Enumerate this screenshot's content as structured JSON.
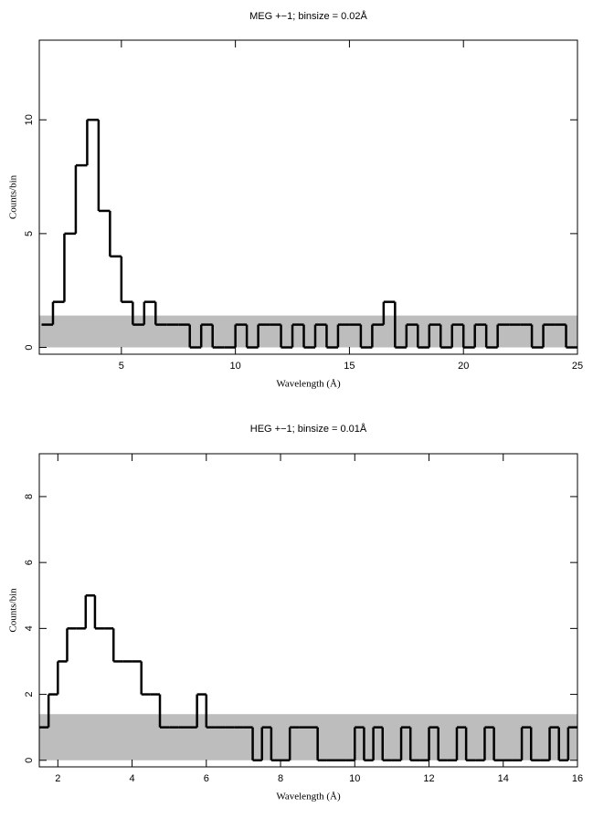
{
  "chart_data": [
    {
      "type": "histogram",
      "title": "MEG +−1; binsize = 0.02Å",
      "xlabel": "Wavelength (Å)",
      "ylabel": "Counts/bin",
      "bins": [
        1.5,
        2,
        2.5,
        3,
        3.5,
        4,
        4.5,
        5,
        5.5,
        6,
        6.5,
        7,
        7.5,
        8,
        8.5,
        9,
        9.5,
        10,
        10.5,
        11,
        11.5,
        12,
        12.5,
        13,
        13.5,
        14,
        14.5,
        15,
        15.5,
        16,
        16.5,
        17,
        17.5,
        18,
        18.5,
        19,
        19.5,
        20,
        20.5,
        21,
        21.5,
        22,
        22.5,
        23,
        23.5,
        24,
        24.5,
        25
      ],
      "values": [
        1,
        2,
        5,
        8,
        10,
        6,
        4,
        2,
        1,
        2,
        1,
        1,
        1,
        0,
        1,
        0,
        0,
        1,
        0,
        1,
        1,
        0,
        1,
        0,
        1,
        0,
        1,
        1,
        0,
        1,
        2,
        0,
        1,
        0,
        1,
        0,
        1,
        0,
        1,
        0,
        1,
        1,
        1,
        0,
        1,
        1,
        0
      ],
      "band_top": 1.4,
      "color": "#000000",
      "band_color": "#bdbdbd",
      "xlim": [
        1.4,
        25
      ],
      "xticks": [
        5,
        10,
        15,
        20,
        25
      ],
      "ylim": [
        -0.3,
        13.5
      ],
      "yticks": [
        0,
        5,
        10
      ]
    },
    {
      "type": "histogram",
      "title": "HEG +−1; binsize = 0.01Å",
      "xlabel": "Wavelength (Å)",
      "ylabel": "Counts/bin",
      "bins": [
        1.5,
        1.75,
        2,
        2.25,
        2.5,
        2.75,
        3,
        3.25,
        3.5,
        3.75,
        4,
        4.25,
        4.5,
        4.75,
        5,
        5.25,
        5.5,
        5.75,
        6,
        6.25,
        6.5,
        6.75,
        7,
        7.25,
        7.5,
        7.75,
        8,
        8.25,
        8.5,
        8.75,
        9,
        9.25,
        9.5,
        9.75,
        10,
        10.25,
        10.5,
        10.75,
        11,
        11.25,
        11.5,
        11.75,
        12,
        12.25,
        12.5,
        12.75,
        13,
        13.25,
        13.5,
        13.75,
        14,
        14.25,
        14.5,
        14.75,
        15,
        15.25,
        15.5,
        15.75,
        16
      ],
      "values": [
        1,
        2,
        3,
        4,
        4,
        5,
        4,
        4,
        3,
        3,
        3,
        2,
        2,
        1,
        1,
        1,
        1,
        2,
        1,
        1,
        1,
        1,
        1,
        0,
        1,
        0,
        0,
        1,
        1,
        1,
        0,
        0,
        0,
        0,
        1,
        0,
        1,
        0,
        0,
        1,
        0,
        0,
        1,
        0,
        0,
        1,
        0,
        0,
        1,
        0,
        0,
        0,
        1,
        0,
        0,
        1,
        0,
        1
      ],
      "band_top": 1.4,
      "color": "#000000",
      "band_color": "#bdbdbd",
      "xlim": [
        1.5,
        16
      ],
      "xticks": [
        2,
        4,
        6,
        8,
        10,
        12,
        14,
        16
      ],
      "ylim": [
        -0.2,
        9.3
      ],
      "yticks": [
        0,
        2,
        4,
        6,
        8
      ]
    }
  ]
}
